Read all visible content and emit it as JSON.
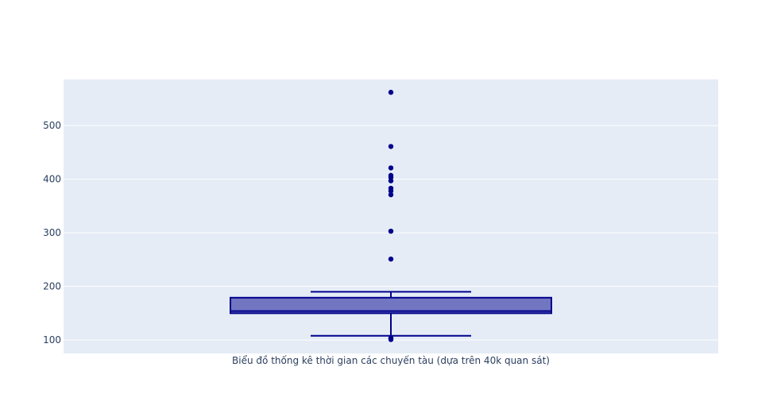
{
  "chart_data": {
    "type": "box",
    "orientation": "vertical",
    "category": "Biểu đồ thống kê thời gian các chuyến tàu (dựa trên 40k quan sát)",
    "title": "",
    "xlabel": "",
    "ylabel": "",
    "ylim": [
      75,
      586
    ],
    "yticks": [
      100,
      200,
      300,
      400,
      500
    ],
    "grid": true,
    "box": {
      "lower_fence": 108,
      "q1": 150,
      "median": 154,
      "q3": 179,
      "upper_fence": 190
    },
    "outliers": [
      562,
      461,
      421,
      407,
      403,
      397,
      383,
      378,
      371,
      303,
      251,
      104,
      103,
      101
    ],
    "colors": {
      "plot_bg": "#e5ecf6",
      "grid": "#ffffff",
      "box_line": "#00008b",
      "box_fill": "rgba(0,0,139,0.5)",
      "text": "#2a3f5f"
    }
  }
}
